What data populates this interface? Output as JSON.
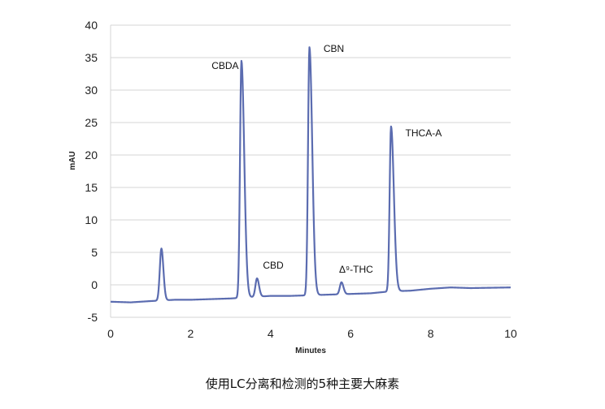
{
  "caption": "使用LC分离和检测的5种主要大麻素",
  "chart_data": {
    "type": "line",
    "xlabel": "Minutes",
    "ylabel": "mAU",
    "xlim": [
      0,
      10
    ],
    "ylim": [
      -5,
      40
    ],
    "xticks": [
      0,
      2,
      4,
      6,
      8,
      10
    ],
    "yticks": [
      -5,
      0,
      5,
      10,
      15,
      20,
      25,
      30,
      35,
      40
    ],
    "grid": "horizontal",
    "line_color": "#5b6cb0",
    "series": [
      {
        "baseline": [
          [
            0,
            -2.6
          ],
          [
            0.5,
            -2.7
          ],
          [
            1.0,
            -2.5
          ],
          [
            1.6,
            -2.3
          ],
          [
            2.0,
            -2.3
          ],
          [
            2.5,
            -2.2
          ],
          [
            3.0,
            -2.1
          ],
          [
            3.5,
            -1.9
          ],
          [
            4.0,
            -1.7
          ],
          [
            4.5,
            -1.7
          ],
          [
            5.0,
            -1.6
          ],
          [
            5.5,
            -1.5
          ],
          [
            6.0,
            -1.4
          ],
          [
            6.5,
            -1.3
          ],
          [
            7.0,
            -1.0
          ],
          [
            7.5,
            -0.9
          ],
          [
            8.0,
            -0.6
          ],
          [
            8.5,
            -0.4
          ],
          [
            9.0,
            -0.5
          ],
          [
            10.0,
            -0.4
          ]
        ],
        "peaks": [
          {
            "x": 1.27,
            "height": 5.6,
            "label": ""
          },
          {
            "x": 3.27,
            "height": 34.5,
            "label": "CBDA"
          },
          {
            "x": 3.66,
            "height": 1.0,
            "label": "CBD"
          },
          {
            "x": 4.97,
            "height": 36.6,
            "label": "CBN"
          },
          {
            "x": 5.77,
            "height": 0.4,
            "label": "Δ⁹-THC"
          },
          {
            "x": 7.01,
            "height": 24.4,
            "label": "THCA-A"
          }
        ]
      }
    ]
  }
}
